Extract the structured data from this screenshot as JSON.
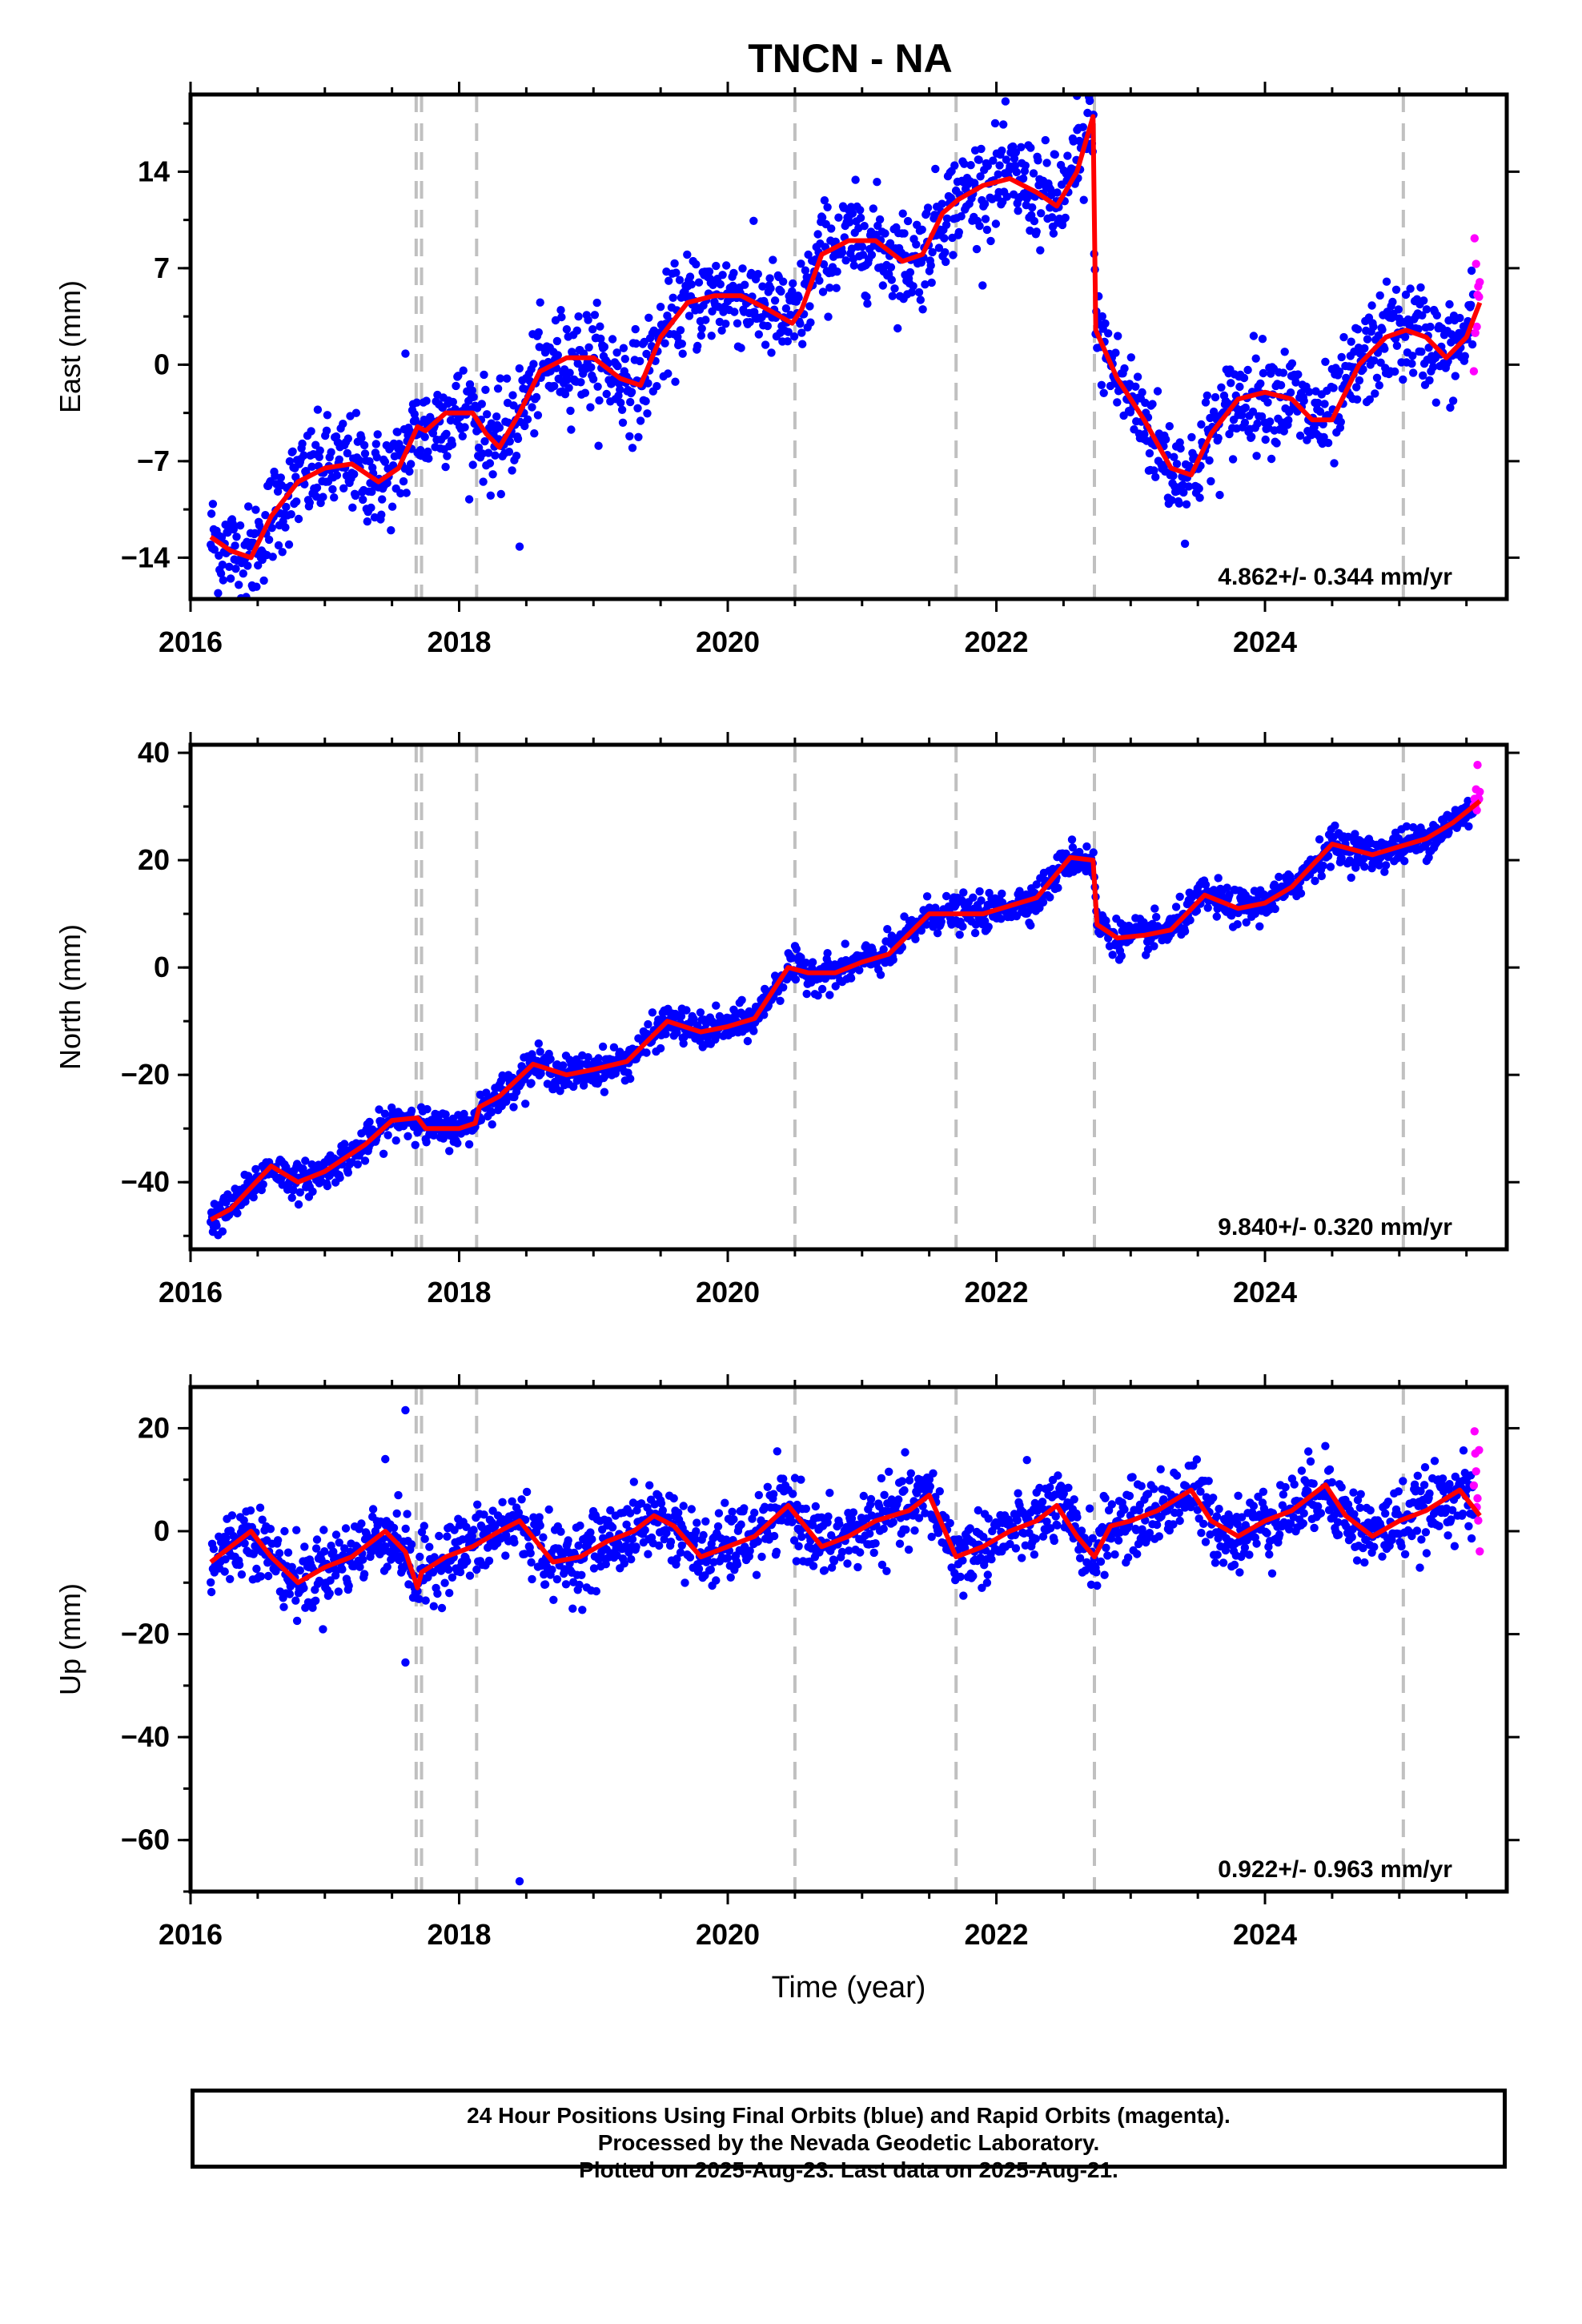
{
  "title": "TNCN - NA",
  "caption": {
    "line1": "24 Hour Positions Using Final Orbits (blue) and Rapid Orbits (magenta).",
    "line2": "Processed by the Nevada Geodetic Laboratory.",
    "line3": "Plotted on 2025-Aug-23. Last data on 2025-Aug-21."
  },
  "colors": {
    "final": "#0000ff",
    "rapid": "#ff00ff",
    "model": "#ff0000",
    "steps": "#c0c0c0"
  },
  "chart_data": [
    {
      "type": "scatter",
      "component": "east",
      "ylabel": "East (mm)",
      "xlabel": "",
      "xlim": [
        2016.0,
        2025.8
      ],
      "ylim": [
        -17,
        19.6
      ],
      "xticks": [
        2016,
        2018,
        2020,
        2022,
        2024
      ],
      "yticks": [
        -14,
        -7,
        0,
        7,
        14
      ],
      "rate_label": "4.862+/- 0.344 mm/yr",
      "step_lines": [
        2017.68,
        2017.72,
        2018.13,
        2020.5,
        2021.7,
        2022.73,
        2025.03
      ],
      "model_curve": {
        "x": [
          2016.15,
          2016.3,
          2016.45,
          2016.6,
          2016.8,
          2017.0,
          2017.2,
          2017.4,
          2017.55,
          2017.69,
          2017.75,
          2017.9,
          2018.1,
          2018.2,
          2018.3,
          2018.45,
          2018.6,
          2018.8,
          2019.0,
          2019.2,
          2019.35,
          2019.5,
          2019.7,
          2019.9,
          2020.1,
          2020.3,
          2020.48,
          2020.55,
          2020.7,
          2020.9,
          2021.1,
          2021.3,
          2021.45,
          2021.6,
          2021.72,
          2021.9,
          2022.1,
          2022.3,
          2022.45,
          2022.6,
          2022.72,
          2022.74,
          2022.9,
          2023.1,
          2023.3,
          2023.45,
          2023.6,
          2023.8,
          2024.0,
          2024.2,
          2024.35,
          2024.5,
          2024.7,
          2024.9,
          2025.05,
          2025.2,
          2025.35,
          2025.5,
          2025.6
        ],
        "y": [
          -12.5,
          -13.5,
          -14,
          -11,
          -8.5,
          -7.5,
          -7.2,
          -8.5,
          -7.5,
          -4.5,
          -4.8,
          -3.5,
          -3.5,
          -5,
          -6,
          -3.5,
          -0.5,
          0.5,
          0.5,
          -1,
          -1.5,
          2,
          4.5,
          5,
          5,
          4,
          3,
          4,
          8,
          9,
          9,
          7.5,
          8,
          11,
          12,
          13,
          13.5,
          12.5,
          11.5,
          14,
          18,
          2.5,
          -1,
          -4,
          -7.5,
          -8,
          -5,
          -2.5,
          -2,
          -2.5,
          -4,
          -4,
          0,
          2,
          2.5,
          2,
          0.5,
          2,
          4.5
        ]
      },
      "data_shape": {
        "scatter_sd_mm": 1.8,
        "rapid_from": 2025.55,
        "outliers": [
          [
            2018.45,
            -13.2
          ],
          [
            2017.6,
            0.8
          ],
          [
            2022.6,
            19.5
          ]
        ]
      }
    },
    {
      "type": "scatter",
      "component": "north",
      "ylabel": "North (mm)",
      "xlabel": "",
      "xlim": [
        2016.0,
        2025.8
      ],
      "ylim": [
        -52.5,
        41.5
      ],
      "xticks": [
        2016,
        2018,
        2020,
        2022,
        2024
      ],
      "yticks": [
        -40,
        -20,
        0,
        20,
        40
      ],
      "rate_label": "9.840+/- 0.320 mm/yr",
      "step_lines": [
        2017.68,
        2017.72,
        2018.13,
        2020.5,
        2021.7,
        2022.73,
        2025.03
      ],
      "model_curve": {
        "x": [
          2016.15,
          2016.3,
          2016.6,
          2016.8,
          2017.0,
          2017.3,
          2017.5,
          2017.69,
          2017.75,
          2018.0,
          2018.12,
          2018.15,
          2018.3,
          2018.55,
          2018.8,
          2019.0,
          2019.25,
          2019.55,
          2019.8,
          2020.0,
          2020.2,
          2020.45,
          2020.6,
          2020.8,
          2021.0,
          2021.2,
          2021.5,
          2021.72,
          2021.9,
          2022.1,
          2022.3,
          2022.55,
          2022.72,
          2022.75,
          2022.9,
          2023.1,
          2023.3,
          2023.55,
          2023.8,
          2024.0,
          2024.2,
          2024.5,
          2024.8,
          2025.0,
          2025.2,
          2025.4,
          2025.6
        ],
        "y": [
          -47,
          -45,
          -37,
          -40,
          -38,
          -33,
          -28.5,
          -28,
          -30,
          -30,
          -29,
          -26,
          -24,
          -18,
          -20,
          -19,
          -17.5,
          -10,
          -12,
          -11,
          -9.5,
          0,
          -1,
          -1,
          1,
          2.5,
          10,
          10,
          10,
          11.5,
          13,
          20.5,
          20,
          8,
          5.5,
          6,
          7,
          13.5,
          11,
          12,
          15,
          23,
          21,
          22.5,
          24,
          27,
          31
        ]
      },
      "data_shape": {
        "scatter_sd_mm": 1.6,
        "rapid_from": 2025.55,
        "outliers": []
      }
    },
    {
      "type": "scatter",
      "component": "up",
      "ylabel": "Up (mm)",
      "xlabel": "Time (year)",
      "xlim": [
        2016.0,
        2025.8
      ],
      "ylim": [
        -70,
        28
      ],
      "xticks": [
        2016,
        2018,
        2020,
        2022,
        2024
      ],
      "yticks": [
        -60,
        -40,
        -20,
        0,
        20
      ],
      "rate_label": "0.922+/- 0.963 mm/yr",
      "step_lines": [
        2017.68,
        2017.72,
        2018.13,
        2020.5,
        2021.7,
        2022.73,
        2025.03
      ],
      "model_curve": {
        "x": [
          2016.15,
          2016.3,
          2016.45,
          2016.6,
          2016.8,
          2017.0,
          2017.2,
          2017.45,
          2017.6,
          2017.69,
          2017.72,
          2017.9,
          2018.1,
          2018.3,
          2018.45,
          2018.7,
          2018.9,
          2019.1,
          2019.3,
          2019.45,
          2019.6,
          2019.8,
          2020.0,
          2020.2,
          2020.45,
          2020.7,
          2020.9,
          2021.1,
          2021.35,
          2021.5,
          2021.7,
          2021.9,
          2022.1,
          2022.3,
          2022.45,
          2022.6,
          2022.73,
          2022.85,
          2023.0,
          2023.2,
          2023.45,
          2023.6,
          2023.8,
          2024.0,
          2024.2,
          2024.45,
          2024.6,
          2024.8,
          2025.0,
          2025.2,
          2025.45,
          2025.6
        ],
        "y": [
          -6,
          -3,
          0,
          -5,
          -10,
          -7,
          -5,
          0,
          -4,
          -11,
          -8,
          -5,
          -3,
          0,
          2,
          -6,
          -5,
          -2,
          0,
          3,
          1,
          -5,
          -3,
          -1,
          5,
          -3,
          -1,
          2,
          4,
          7,
          -5,
          -3,
          0,
          2,
          5,
          -1,
          -5,
          1,
          2,
          4,
          8,
          2,
          -1,
          2,
          4,
          9,
          3,
          -1,
          2,
          4,
          8,
          3
        ]
      },
      "data_shape": {
        "scatter_sd_mm": 3.5,
        "rapid_from": 2025.55,
        "outliers": [
          [
            2018.45,
            -68
          ],
          [
            2017.6,
            23.5
          ],
          [
            2017.6,
            -25.5
          ],
          [
            2017.45,
            14
          ]
        ]
      }
    }
  ]
}
